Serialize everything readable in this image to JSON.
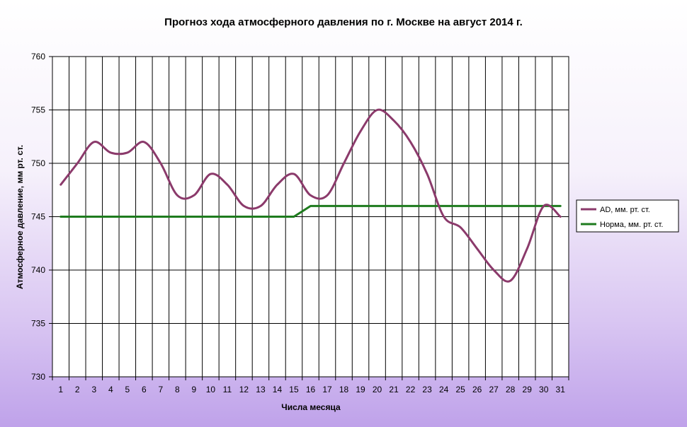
{
  "chart_data": {
    "type": "line",
    "title": "Прогноз хода атмосферного давления по г. Москве на август 2014 г.",
    "xlabel": "Числа месяца",
    "ylabel": "Атмосферное давление, мм рт. ст.",
    "x": [
      1,
      2,
      3,
      4,
      5,
      6,
      7,
      8,
      9,
      10,
      11,
      12,
      13,
      14,
      15,
      16,
      17,
      18,
      19,
      20,
      21,
      22,
      23,
      24,
      25,
      26,
      27,
      28,
      29,
      30,
      31
    ],
    "xticks": [
      "1",
      "2",
      "3",
      "4",
      "5",
      "6",
      "7",
      "8",
      "9",
      "10",
      "11",
      "12",
      "13",
      "14",
      "15",
      "16",
      "17",
      "18",
      "19",
      "20",
      "21",
      "22",
      "23",
      "24",
      "25",
      "26",
      "27",
      "28",
      "29",
      "30",
      "31"
    ],
    "ylim": [
      730,
      760
    ],
    "yticks": [
      "730",
      "735",
      "740",
      "745",
      "750",
      "755",
      "760"
    ],
    "grid": true,
    "legend_position": "right",
    "series": [
      {
        "name": "АD, мм. рт. ст.",
        "color": "#8B3A6B",
        "smooth": true,
        "values": [
          748,
          750,
          752,
          751,
          751,
          752,
          750,
          747,
          747,
          749,
          748,
          746,
          746,
          748,
          749,
          747,
          747,
          750,
          753,
          755,
          754,
          752,
          749,
          745,
          744,
          742,
          740,
          739,
          742,
          746,
          745
        ]
      },
      {
        "name": "Норма, мм. рт. ст.",
        "color": "#1E7B1E",
        "smooth": false,
        "values": [
          745,
          745,
          745,
          745,
          745,
          745,
          745,
          745,
          745,
          745,
          745,
          745,
          745,
          745,
          745,
          746,
          746,
          746,
          746,
          746,
          746,
          746,
          746,
          746,
          746,
          746,
          746,
          746,
          746,
          746,
          746
        ]
      }
    ]
  }
}
